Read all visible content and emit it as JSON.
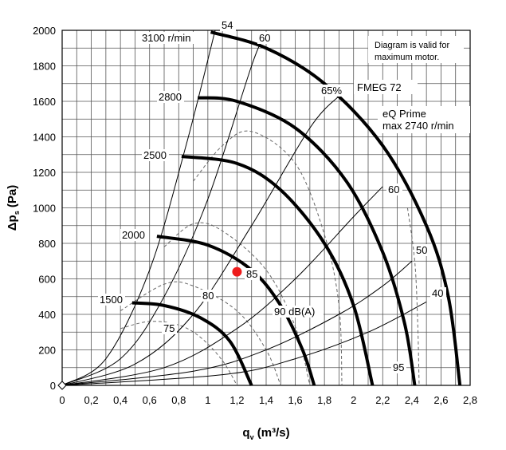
{
  "chart_data": {
    "type": "line",
    "title": "",
    "xlabel": {
      "main": "q",
      "sub": "v",
      "unit": " (m³/s)"
    },
    "ylabel": {
      "main": "Δp",
      "sub": "s",
      "unit": " (Pa)"
    },
    "xlim": [
      0,
      2.8
    ],
    "ylim": [
      0,
      2000
    ],
    "grid": true,
    "x_ticks": [
      "0",
      "0,2",
      "0,4",
      "0,6",
      "0,8",
      "1",
      "1,2",
      "1,4",
      "1,6",
      "1,8",
      "2",
      "2,2",
      "2,4",
      "2,6",
      "2,8"
    ],
    "y_ticks": [
      "0",
      "200",
      "400",
      "600",
      "800",
      "1000",
      "1200",
      "1400",
      "1600",
      "1800",
      "2000"
    ],
    "notes": {
      "validity_line1": "Diagram is valid for",
      "validity_line2": "maximum motor.",
      "model": "FMEG 72",
      "fan_line1": "eQ Prime",
      "fan_line2": "max 2740 r/min"
    },
    "speed_curves": [
      {
        "label": "3100 r/min",
        "points": [
          [
            1.02,
            1990
          ],
          [
            1.4,
            1900
          ],
          [
            1.8,
            1700
          ],
          [
            2.2,
            1350
          ],
          [
            2.5,
            900
          ],
          [
            2.65,
            500
          ],
          [
            2.73,
            0
          ]
        ]
      },
      {
        "label": "2800",
        "points": [
          [
            0.93,
            1620
          ],
          [
            1.2,
            1600
          ],
          [
            1.6,
            1450
          ],
          [
            1.95,
            1150
          ],
          [
            2.2,
            750
          ],
          [
            2.35,
            350
          ],
          [
            2.42,
            0
          ]
        ]
      },
      {
        "label": "2500",
        "points": [
          [
            0.82,
            1290
          ],
          [
            1.2,
            1250
          ],
          [
            1.5,
            1100
          ],
          [
            1.8,
            800
          ],
          [
            2.0,
            450
          ],
          [
            2.13,
            0
          ]
        ]
      },
      {
        "label": "2000",
        "points": [
          [
            0.65,
            840
          ],
          [
            1.0,
            790
          ],
          [
            1.3,
            650
          ],
          [
            1.5,
            450
          ],
          [
            1.65,
            200
          ],
          [
            1.73,
            0
          ]
        ]
      },
      {
        "label": "1500",
        "points": [
          [
            0.48,
            465
          ],
          [
            0.7,
            450
          ],
          [
            0.95,
            380
          ],
          [
            1.15,
            250
          ],
          [
            1.3,
            0
          ]
        ]
      }
    ],
    "efficiency_curves": [
      {
        "label": "54",
        "points": [
          [
            0,
            0
          ],
          [
            0.3,
            150
          ],
          [
            0.6,
            650
          ],
          [
            0.85,
            1350
          ],
          [
            1.05,
            2000
          ]
        ]
      },
      {
        "label": "60",
        "points": [
          [
            0,
            0
          ],
          [
            0.4,
            150
          ],
          [
            0.7,
            500
          ],
          [
            1.0,
            1050
          ],
          [
            1.3,
            1800
          ],
          [
            1.38,
            1950
          ]
        ]
      },
      {
        "label": "65%",
        "points": [
          [
            0,
            0
          ],
          [
            0.5,
            120
          ],
          [
            0.9,
            400
          ],
          [
            1.3,
            900
          ],
          [
            1.7,
            1450
          ],
          [
            1.9,
            1630
          ]
        ]
      },
      {
        "label": "60",
        "points": [
          [
            0,
            0
          ],
          [
            0.7,
            100
          ],
          [
            1.2,
            320
          ],
          [
            1.6,
            600
          ],
          [
            2.0,
            950
          ],
          [
            2.2,
            1120
          ]
        ]
      },
      {
        "label": "50",
        "points": [
          [
            0,
            0
          ],
          [
            0.9,
            80
          ],
          [
            1.4,
            200
          ],
          [
            1.9,
            400
          ],
          [
            2.2,
            560
          ],
          [
            2.4,
            700
          ]
        ]
      },
      {
        "label": "40",
        "points": [
          [
            0,
            0
          ],
          [
            1.1,
            60
          ],
          [
            1.6,
            150
          ],
          [
            2.1,
            300
          ],
          [
            2.5,
            470
          ]
        ]
      }
    ],
    "sound_curves": [
      {
        "label": "75",
        "points": [
          [
            0.4,
            320
          ],
          [
            0.6,
            360
          ],
          [
            0.8,
            340
          ],
          [
            0.95,
            270
          ],
          [
            1.1,
            140
          ],
          [
            1.2,
            0
          ]
        ]
      },
      {
        "label": "80",
        "points": [
          [
            0.4,
            420
          ],
          [
            0.7,
            570
          ],
          [
            0.9,
            560
          ],
          [
            1.2,
            420
          ],
          [
            1.4,
            200
          ],
          [
            1.5,
            0
          ]
        ]
      },
      {
        "label": "85",
        "points": [
          [
            0.7,
            780
          ],
          [
            0.9,
            910
          ],
          [
            1.1,
            870
          ],
          [
            1.4,
            650
          ],
          [
            1.6,
            330
          ],
          [
            1.7,
            0
          ]
        ]
      },
      {
        "label": "90 dB(A)",
        "points": [
          [
            0.9,
            1150
          ],
          [
            1.1,
            1350
          ],
          [
            1.3,
            1430
          ],
          [
            1.6,
            1250
          ],
          [
            1.8,
            850
          ],
          [
            1.9,
            450
          ],
          [
            1.92,
            0
          ]
        ]
      },
      {
        "label": "95",
        "points": [
          [
            2.37,
            1000
          ],
          [
            2.42,
            700
          ],
          [
            2.44,
            350
          ],
          [
            2.45,
            0
          ]
        ]
      }
    ],
    "operating_point": {
      "x": 1.2,
      "y": 640
    }
  }
}
